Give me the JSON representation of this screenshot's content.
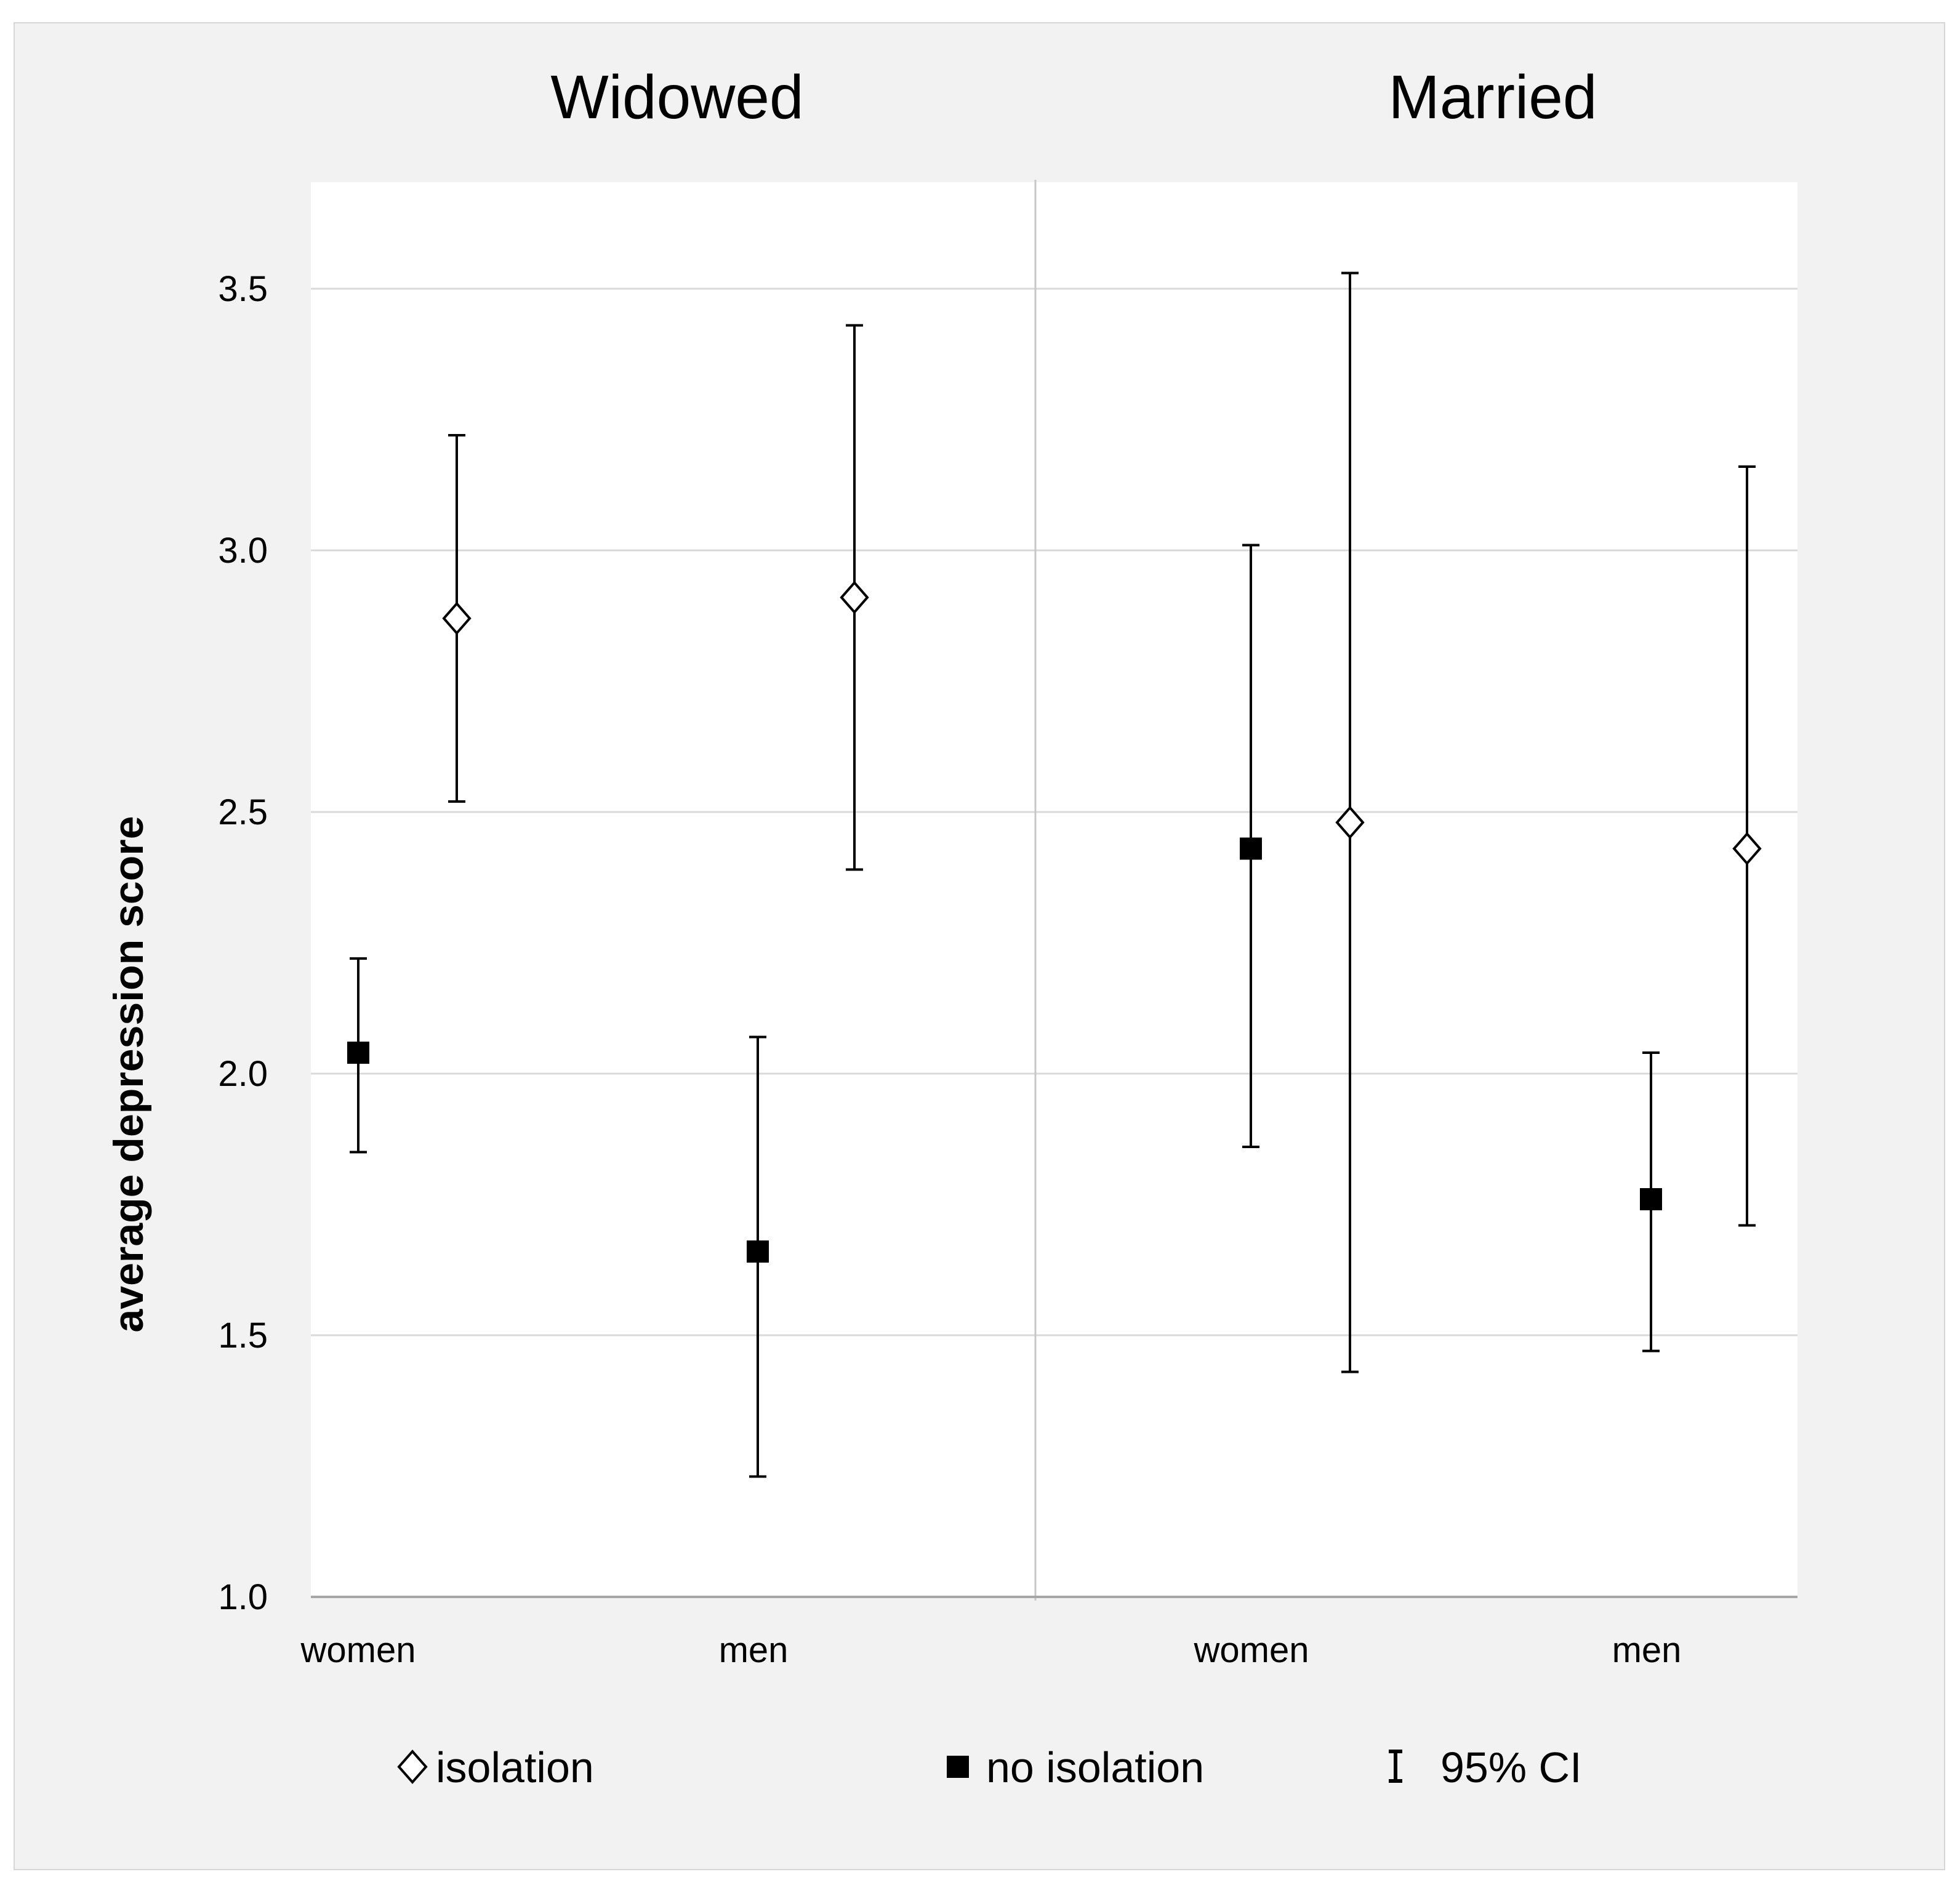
{
  "chart_data": {
    "type": "scatter",
    "panels": [
      {
        "title": "Widowed",
        "categories": [
          "women",
          "men"
        ]
      },
      {
        "title": "Married",
        "categories": [
          "women",
          "men"
        ]
      }
    ],
    "ylabel": "average depression score",
    "ylim": [
      1.0,
      3.7
    ],
    "yticks": [
      "1.0",
      "1.5",
      "2.0",
      "2.5",
      "3.0",
      "3.5"
    ],
    "grid": true,
    "legend": {
      "position": "bottom",
      "items": [
        {
          "label": "isolation",
          "marker": "open-diamond"
        },
        {
          "label": "no isolation",
          "marker": "filled-square"
        },
        {
          "label": "95% CI",
          "marker": "error-bar"
        }
      ]
    },
    "series": [
      {
        "name": "isolation",
        "points": [
          {
            "panel": "Widowed",
            "category": "women",
            "value": 2.87,
            "ci_low": 2.52,
            "ci_high": 3.22
          },
          {
            "panel": "Widowed",
            "category": "men",
            "value": 2.91,
            "ci_low": 2.39,
            "ci_high": 3.43
          },
          {
            "panel": "Married",
            "category": "women",
            "value": 2.48,
            "ci_low": 1.43,
            "ci_high": 3.53
          },
          {
            "panel": "Married",
            "category": "men",
            "value": 2.43,
            "ci_low": 1.71,
            "ci_high": 3.16
          }
        ]
      },
      {
        "name": "no isolation",
        "points": [
          {
            "panel": "Widowed",
            "category": "women",
            "value": 2.04,
            "ci_low": 1.85,
            "ci_high": 2.22
          },
          {
            "panel": "Widowed",
            "category": "men",
            "value": 1.66,
            "ci_low": 1.23,
            "ci_high": 2.07
          },
          {
            "panel": "Married",
            "category": "women",
            "value": 2.43,
            "ci_low": 1.86,
            "ci_high": 3.01
          },
          {
            "panel": "Married",
            "category": "men",
            "value": 1.76,
            "ci_low": 1.47,
            "ci_high": 2.04
          }
        ]
      }
    ]
  }
}
